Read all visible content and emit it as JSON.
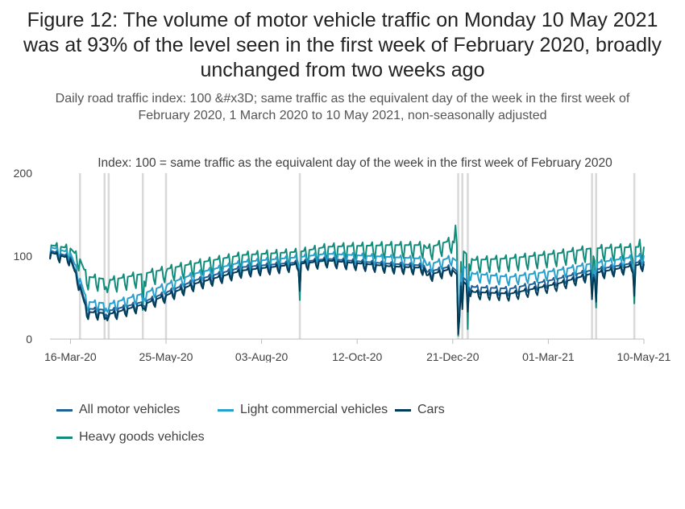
{
  "title": "Figure 12: The volume of motor vehicle traffic on Monday 10 May 2021 was at 93% of the level seen in the first week of February 2020, broadly unchanged from two weeks ago",
  "subtitle": "Daily road traffic index: 100 &#x3D; same traffic as the equivalent day of the week in the first week of February 2020, 1 March 2020 to 10 May 2021, non-seasonally adjusted",
  "chart_data": {
    "type": "line",
    "title": "",
    "ylabel": "Index: 100 = same traffic as the equivalent day of the week in the first week of February 2020",
    "xlabel": "",
    "x_range": [
      "2020-03-01",
      "2021-05-10"
    ],
    "ylim": [
      0,
      200
    ],
    "y_ticks": [
      0,
      100,
      200
    ],
    "x_tick_labels": [
      "16-Mar-20",
      "25-May-20",
      "03-Aug-20",
      "12-Oct-20",
      "21-Dec-20",
      "01-Mar-21",
      "10-May-21"
    ],
    "x_tick_dates": [
      "2020-03-16",
      "2020-05-25",
      "2020-08-03",
      "2020-10-12",
      "2020-12-21",
      "2021-03-01",
      "2021-05-10"
    ],
    "grid": "vertical reference lines",
    "legend_position": "bottom",
    "reference_dates": [
      "2020-03-23",
      "2020-04-10",
      "2020-04-13",
      "2020-05-08",
      "2020-05-25",
      "2020-08-31",
      "2020-12-25",
      "2020-12-28",
      "2021-01-01",
      "2021-04-02",
      "2021-04-05",
      "2021-05-03"
    ],
    "series": [
      {
        "name": "All motor vehicles",
        "color": "#206095",
        "anchors": [
          [
            "2020-03-01",
            106
          ],
          [
            "2020-03-16",
            98
          ],
          [
            "2020-03-23",
            65
          ],
          [
            "2020-03-28",
            36
          ],
          [
            "2020-04-15",
            34
          ],
          [
            "2020-05-10",
            45
          ],
          [
            "2020-06-15",
            70
          ],
          [
            "2020-07-20",
            86
          ],
          [
            "2020-08-31",
            92
          ],
          [
            "2020-09-20",
            96
          ],
          [
            "2020-11-05",
            90
          ],
          [
            "2020-11-30",
            88
          ],
          [
            "2020-12-02",
            80
          ],
          [
            "2020-12-20",
            87
          ],
          [
            "2021-01-05",
            62
          ],
          [
            "2021-02-01",
            60
          ],
          [
            "2021-03-08",
            72
          ],
          [
            "2021-04-01",
            82
          ],
          [
            "2021-05-10",
            93
          ]
        ],
        "dips": [
          [
            "2020-04-10",
            27
          ],
          [
            "2020-04-13",
            30
          ],
          [
            "2020-05-08",
            40
          ],
          [
            "2020-05-25",
            55
          ],
          [
            "2020-08-31",
            60
          ],
          [
            "2020-12-25",
            8
          ],
          [
            "2020-12-26",
            32
          ],
          [
            "2020-12-28",
            40
          ],
          [
            "2021-01-01",
            38
          ],
          [
            "2021-04-02",
            52
          ],
          [
            "2021-04-05",
            48
          ],
          [
            "2021-05-03",
            56
          ]
        ],
        "amp": 5
      },
      {
        "name": "Light commercial vehicles",
        "color": "#27a0cc",
        "anchors": [
          [
            "2020-03-01",
            110
          ],
          [
            "2020-03-16",
            103
          ],
          [
            "2020-03-23",
            72
          ],
          [
            "2020-03-28",
            44
          ],
          [
            "2020-04-15",
            42
          ],
          [
            "2020-05-10",
            55
          ],
          [
            "2020-06-15",
            78
          ],
          [
            "2020-07-20",
            92
          ],
          [
            "2020-08-31",
            98
          ],
          [
            "2020-09-20",
            102
          ],
          [
            "2020-11-05",
            98
          ],
          [
            "2020-11-30",
            96
          ],
          [
            "2020-12-02",
            88
          ],
          [
            "2020-12-20",
            98
          ],
          [
            "2021-01-05",
            78
          ],
          [
            "2021-02-01",
            74
          ],
          [
            "2021-03-08",
            82
          ],
          [
            "2021-04-01",
            90
          ],
          [
            "2021-05-10",
            100
          ]
        ],
        "dips": [
          [
            "2020-04-10",
            33
          ],
          [
            "2020-04-13",
            36
          ],
          [
            "2020-05-08",
            46
          ],
          [
            "2020-05-25",
            62
          ],
          [
            "2020-08-31",
            66
          ],
          [
            "2020-12-25",
            14
          ],
          [
            "2020-12-26",
            40
          ],
          [
            "2020-12-28",
            48
          ],
          [
            "2021-01-01",
            44
          ],
          [
            "2021-04-02",
            58
          ],
          [
            "2021-04-05",
            55
          ],
          [
            "2021-05-03",
            62
          ]
        ],
        "amp": 6
      },
      {
        "name": "Cars",
        "color": "#003c57",
        "anchors": [
          [
            "2020-03-01",
            104
          ],
          [
            "2020-03-16",
            96
          ],
          [
            "2020-03-23",
            62
          ],
          [
            "2020-03-28",
            32
          ],
          [
            "2020-04-15",
            30
          ],
          [
            "2020-05-10",
            42
          ],
          [
            "2020-06-15",
            66
          ],
          [
            "2020-07-20",
            82
          ],
          [
            "2020-08-31",
            90
          ],
          [
            "2020-09-20",
            94
          ],
          [
            "2020-11-05",
            87
          ],
          [
            "2020-11-30",
            85
          ],
          [
            "2020-12-02",
            76
          ],
          [
            "2020-12-20",
            84
          ],
          [
            "2021-01-05",
            56
          ],
          [
            "2021-02-01",
            54
          ],
          [
            "2021-03-08",
            66
          ],
          [
            "2021-04-01",
            78
          ],
          [
            "2021-05-10",
            90
          ]
        ],
        "dips": [
          [
            "2020-04-10",
            24
          ],
          [
            "2020-04-13",
            27
          ],
          [
            "2020-05-08",
            37
          ],
          [
            "2020-05-25",
            52
          ],
          [
            "2020-08-31",
            58
          ],
          [
            "2020-12-25",
            6
          ],
          [
            "2020-12-26",
            28
          ],
          [
            "2020-12-28",
            36
          ],
          [
            "2021-01-01",
            33
          ],
          [
            "2021-04-02",
            48
          ],
          [
            "2021-04-05",
            45
          ],
          [
            "2021-05-03",
            52
          ]
        ],
        "amp": 5
      },
      {
        "name": "Heavy goods vehicles",
        "color": "#118c7b",
        "anchors": [
          [
            "2020-03-01",
            112
          ],
          [
            "2020-03-16",
            108
          ],
          [
            "2020-03-23",
            95
          ],
          [
            "2020-03-28",
            74
          ],
          [
            "2020-04-15",
            70
          ],
          [
            "2020-05-10",
            78
          ],
          [
            "2020-06-15",
            90
          ],
          [
            "2020-07-20",
            100
          ],
          [
            "2020-08-31",
            104
          ],
          [
            "2020-09-20",
            110
          ],
          [
            "2020-11-05",
            112
          ],
          [
            "2020-11-30",
            112
          ],
          [
            "2020-12-02",
            108
          ],
          [
            "2020-12-20",
            118
          ],
          [
            "2021-01-05",
            94
          ],
          [
            "2021-02-01",
            96
          ],
          [
            "2021-03-08",
            102
          ],
          [
            "2021-04-01",
            108
          ],
          [
            "2021-05-10",
            110
          ]
        ],
        "dips": [
          [
            "2020-04-10",
            60
          ],
          [
            "2020-04-13",
            64
          ],
          [
            "2020-05-08",
            35
          ],
          [
            "2020-05-25",
            80
          ],
          [
            "2020-08-31",
            47
          ],
          [
            "2020-12-25",
            4
          ],
          [
            "2020-12-26",
            28
          ],
          [
            "2020-12-28",
            55
          ],
          [
            "2021-01-01",
            12
          ],
          [
            "2021-04-02",
            52
          ],
          [
            "2021-04-05",
            38
          ],
          [
            "2021-05-03",
            43
          ]
        ],
        "peaks": [
          [
            "2020-12-23",
            137
          ],
          [
            "2021-05-07",
            120
          ]
        ],
        "amp": 9
      }
    ]
  }
}
